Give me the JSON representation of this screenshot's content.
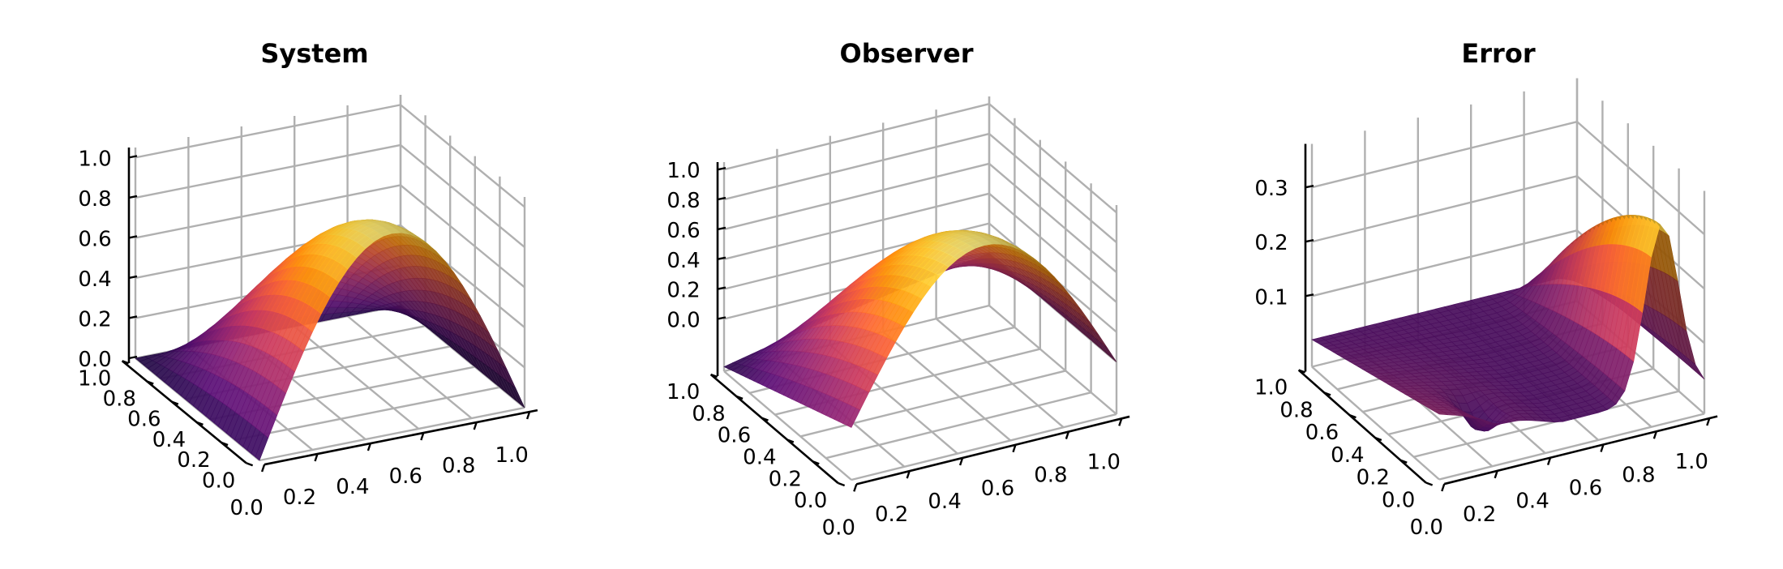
{
  "figure": {
    "panels": [
      "System",
      "Observer",
      "Error"
    ]
  },
  "chart_data": [
    {
      "type": "surface",
      "title": "System",
      "x_ticks": [
        "0.0",
        "0.2",
        "0.4",
        "0.6",
        "0.8",
        "1.0"
      ],
      "y_ticks": [
        "0.0",
        "0.2",
        "0.4",
        "0.6",
        "0.8",
        "1.0"
      ],
      "z_ticks": [
        "0.0",
        "0.2",
        "0.4",
        "0.6",
        "0.8",
        "1.0"
      ],
      "xlim": [
        0,
        1
      ],
      "ylim": [
        0,
        1
      ],
      "zlim": [
        0,
        1.05
      ],
      "surface": "sin(pi*x)*(1-y^2)",
      "peak_value": 1.0,
      "colormap": "inferno",
      "grid": true
    },
    {
      "type": "surface",
      "title": "Observer",
      "x_ticks": [
        "0.0",
        "0.2",
        "0.4",
        "0.6",
        "0.8",
        "1.0"
      ],
      "y_ticks": [
        "0.0",
        "0.2",
        "0.4",
        "0.6",
        "0.8",
        "1.0"
      ],
      "z_ticks": [
        "0.0",
        "0.2",
        "0.4",
        "0.6",
        "0.8",
        "1.0"
      ],
      "xlim": [
        0,
        1
      ],
      "ylim": [
        0,
        1
      ],
      "zlim": [
        -0.35,
        1.05
      ],
      "surface": "sin(pi*x)*(1-y^2) - 0.3*(1-x)*y",
      "peak_value": 1.0,
      "min_value": -0.3,
      "colormap": "inferno",
      "grid": true
    },
    {
      "type": "surface",
      "title": "Error",
      "x_ticks": [
        "0.0",
        "0.2",
        "0.4",
        "0.6",
        "0.8",
        "1.0"
      ],
      "y_ticks": [
        "0.0",
        "0.2",
        "0.4",
        "0.6",
        "0.8",
        "1.0"
      ],
      "z_ticks": [
        "0.1",
        "0.2",
        "0.3"
      ],
      "xlim": [
        0,
        1
      ],
      "ylim": [
        0,
        1
      ],
      "zlim": [
        -0.03,
        0.38
      ],
      "surface": "error between system and observer",
      "peak_value": 0.32,
      "colormap": "inferno",
      "grid": true
    }
  ]
}
